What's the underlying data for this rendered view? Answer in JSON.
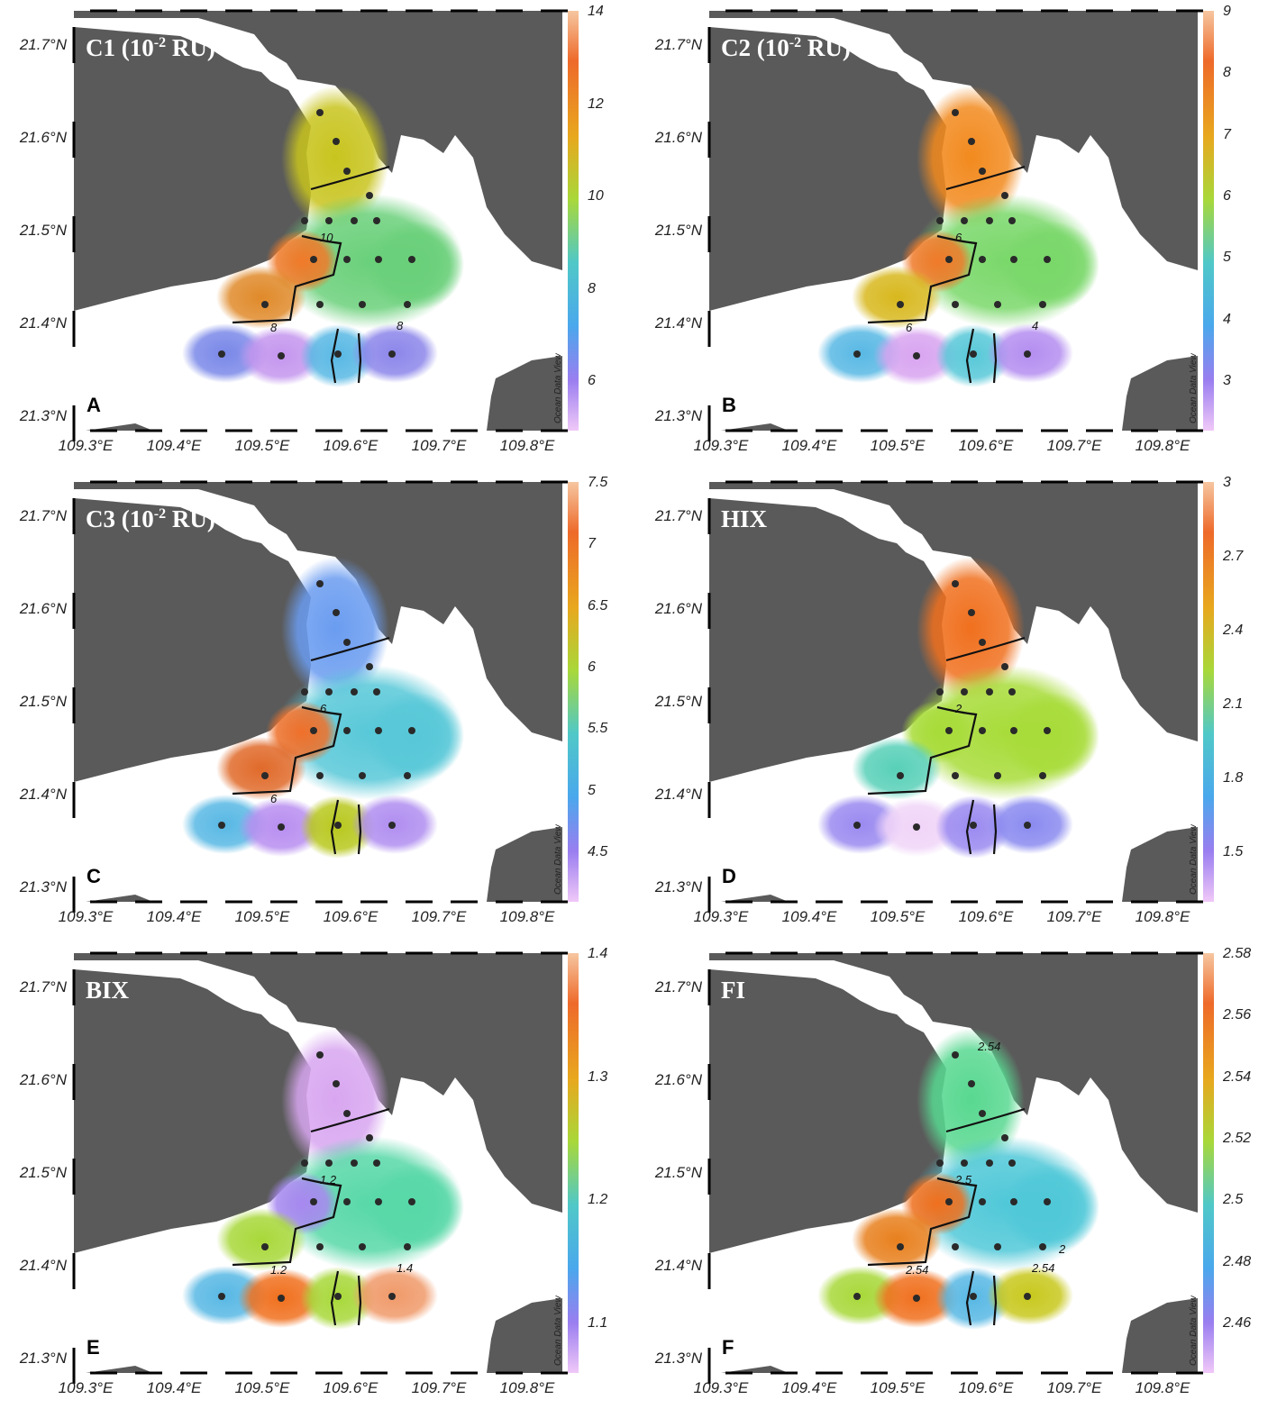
{
  "latitude_labels": [
    "21.7°N",
    "21.6°N",
    "21.5°N",
    "21.4°N",
    "21.3°N"
  ],
  "longitude_labels": [
    "109.3°E",
    "109.4°E",
    "109.5°E",
    "109.6°E",
    "109.7°E",
    "109.8°E"
  ],
  "watermark": "Ocean Data View",
  "colors": {
    "land": "#5a5a5a",
    "sea": "#ffffff",
    "station": "#2a2a2a",
    "contour": "#111111"
  },
  "panels": [
    {
      "letter": "A",
      "title": "C1 (10",
      "sup": "-2",
      "title_tail": " RU)",
      "colorbar": [
        "14",
        "12",
        "10",
        "8",
        "6"
      ],
      "contour_labels": [
        "10",
        "8",
        "8"
      ],
      "field": {
        "north": "#c8c41e",
        "mid": "#6ad07a",
        "west": "#f07a2a",
        "southwest": "#e08a2a",
        "south": [
          "#7a88e8",
          "#c496ee",
          "#58b8e4",
          "#8c86ea"
        ]
      }
    },
    {
      "letter": "B",
      "title": "C2 (10",
      "sup": "-2",
      "title_tail": " RU)",
      "colorbar": [
        "9",
        "8",
        "7",
        "6",
        "5",
        "4",
        "3"
      ],
      "contour_labels": [
        "6",
        "6",
        "4"
      ],
      "field": {
        "north": "#f28a1e",
        "mid": "#7ad86a",
        "west": "#f07a2a",
        "southwest": "#d8b81e",
        "south": [
          "#58b8e4",
          "#d8a4f0",
          "#58c8d8",
          "#b48ef0"
        ]
      }
    },
    {
      "letter": "C",
      "title": "C3 (10",
      "sup": "-2",
      "title_tail": " RU)",
      "colorbar": [
        "7.5",
        "7",
        "6.5",
        "6",
        "5.5",
        "5",
        "4.5"
      ],
      "contour_labels": [
        "6",
        "6"
      ],
      "field": {
        "north": "#6a9cf0",
        "mid": "#58c8d8",
        "west": "#f0702a",
        "southwest": "#e06a2a",
        "south": [
          "#58b8e4",
          "#b88ef0",
          "#b8c81e",
          "#b08ef0"
        ]
      }
    },
    {
      "letter": "D",
      "title": "HIX",
      "sup": "",
      "title_tail": "",
      "colorbar": [
        "3",
        "2.7",
        "2.4",
        "2.1",
        "1.8",
        "1.5"
      ],
      "contour_labels": [
        "2"
      ],
      "field": {
        "north": "#f0701e",
        "mid": "#a8dc3a",
        "west": "#a8dc3a",
        "southwest": "#58d0b8",
        "south": [
          "#9a8af0",
          "#f0d4f8",
          "#9a8af0",
          "#8a8af0"
        ]
      }
    },
    {
      "letter": "E",
      "title": "BIX",
      "sup": "",
      "title_tail": "",
      "colorbar": [
        "1.4",
        "1.3",
        "1.2",
        "1.1"
      ],
      "contour_labels": [
        "1.2",
        "1.2",
        "1.4"
      ],
      "field": {
        "north": "#d8a6f0",
        "mid": "#58d8a8",
        "west": "#a888f0",
        "southwest": "#a8d83a",
        "south": [
          "#58b8e4",
          "#f0701e",
          "#a8d83a",
          "#f09a6a"
        ]
      }
    },
    {
      "letter": "F",
      "title": "FI",
      "sup": "",
      "title_tail": "",
      "colorbar": [
        "2.58",
        "2.56",
        "2.54",
        "2.52",
        "2.5",
        "2.48",
        "2.46"
      ],
      "contour_labels": [
        "2.5",
        "2.54",
        "2.54",
        "2.54",
        "2"
      ],
      "field": {
        "north": "#58d890",
        "mid": "#50c8d8",
        "west": "#f0701e",
        "southwest": "#e8801e",
        "south": [
          "#a8d83a",
          "#f0701e",
          "#58b8e4",
          "#c8c81e"
        ]
      }
    }
  ]
}
